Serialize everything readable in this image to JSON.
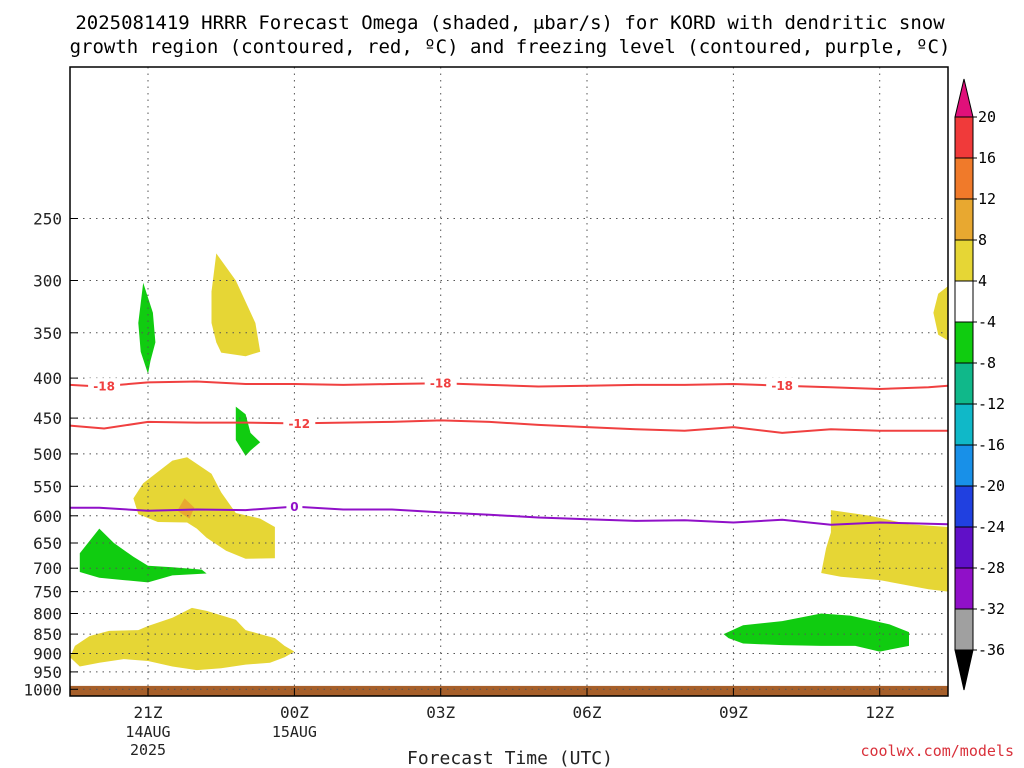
{
  "chart_data": {
    "type": "heatmap",
    "title_lines": [
      "2025081419 HRRR Forecast Omega (shaded, μbar/s) for KORD with dendritic snow",
      "growth region (contoured, red, ºC) and freezing level (contoured, purple, ºC)"
    ],
    "xlabel": "Forecast Time (UTC)",
    "credit": "coolwx.com/models",
    "x_range_hours": [
      -1.6,
      16.4
    ],
    "y_range_hpa": [
      1020,
      160
    ],
    "y_ticks": [
      250,
      300,
      350,
      400,
      450,
      500,
      550,
      600,
      650,
      700,
      750,
      800,
      850,
      900,
      950,
      1000
    ],
    "x_ticks": [
      {
        "hour": 0,
        "label": "21Z",
        "date": "14AUG",
        "year": "2025"
      },
      {
        "hour": 3,
        "label": "00Z",
        "date": "15AUG",
        "year": ""
      },
      {
        "hour": 6,
        "label": "03Z",
        "date": "",
        "year": ""
      },
      {
        "hour": 9,
        "label": "06Z",
        "date": "",
        "year": ""
      },
      {
        "hour": 12,
        "label": "09Z",
        "date": "",
        "year": ""
      },
      {
        "hour": 15,
        "label": "12Z",
        "date": "",
        "year": ""
      }
    ],
    "grid": true,
    "colorbar": {
      "levels": [
        {
          "label": "20",
          "color": "#e8106f"
        },
        {
          "label": "16",
          "color": "#f03a3a"
        },
        {
          "label": "12",
          "color": "#f07a2a"
        },
        {
          "label": "8",
          "color": "#e8a830"
        },
        {
          "label": "4",
          "color": "#e6d635"
        },
        {
          "label": "-4",
          "color": "#ffffff"
        },
        {
          "label": "-8",
          "color": "#10cc10"
        },
        {
          "label": "-12",
          "color": "#10b88a"
        },
        {
          "label": "-16",
          "color": "#10b8c8"
        },
        {
          "label": "-20",
          "color": "#1890e8"
        },
        {
          "label": "-24",
          "color": "#2040e0"
        },
        {
          "label": "-28",
          "color": "#6010c8"
        },
        {
          "label": "-32",
          "color": "#9010c8"
        },
        {
          "label": "-36",
          "color": "#a0a0a0"
        }
      ],
      "top_arrow_color": "#e0107a",
      "bottom_arrow_color": "#000000"
    },
    "contours": [
      {
        "label": "-18",
        "color": "#f04040",
        "points": [
          [
            -1.6,
            408
          ],
          [
            -1.0,
            410
          ],
          [
            0,
            405
          ],
          [
            1,
            404
          ],
          [
            2,
            407
          ],
          [
            3,
            407
          ],
          [
            4,
            408
          ],
          [
            5,
            407
          ],
          [
            6,
            406
          ],
          [
            7,
            408
          ],
          [
            8,
            410
          ],
          [
            9,
            409
          ],
          [
            10,
            408
          ],
          [
            11,
            408
          ],
          [
            12,
            407
          ],
          [
            13,
            409
          ],
          [
            14,
            411
          ],
          [
            15,
            413
          ],
          [
            16,
            411
          ],
          [
            16.4,
            409
          ]
        ],
        "label_hours": [
          -0.9,
          6.0,
          13.0
        ]
      },
      {
        "label": "-12",
        "color": "#f04040",
        "points": [
          [
            -1.6,
            460
          ],
          [
            -0.9,
            464
          ],
          [
            0,
            455
          ],
          [
            1,
            456
          ],
          [
            2,
            456
          ],
          [
            3,
            457
          ],
          [
            4,
            456
          ],
          [
            5,
            455
          ],
          [
            6,
            453
          ],
          [
            7,
            455
          ],
          [
            8,
            459
          ],
          [
            9,
            462
          ],
          [
            10,
            465
          ],
          [
            11,
            467
          ],
          [
            12,
            462
          ],
          [
            13,
            470
          ],
          [
            14,
            465
          ],
          [
            15,
            467
          ],
          [
            16,
            467
          ],
          [
            16.4,
            467
          ]
        ],
        "label_hours": [
          3.1
        ]
      },
      {
        "label": "0",
        "color": "#9010c8",
        "points": [
          [
            -1.6,
            586
          ],
          [
            -1,
            586
          ],
          [
            0,
            591
          ],
          [
            1,
            589
          ],
          [
            2,
            590
          ],
          [
            3,
            584
          ],
          [
            4,
            589
          ],
          [
            5,
            589
          ],
          [
            6,
            594
          ],
          [
            7,
            598
          ],
          [
            8,
            603
          ],
          [
            9,
            606
          ],
          [
            10,
            609
          ],
          [
            11,
            608
          ],
          [
            12,
            612
          ],
          [
            13,
            607
          ],
          [
            14,
            616
          ],
          [
            15,
            612
          ],
          [
            16,
            614
          ],
          [
            16.4,
            615
          ]
        ],
        "label_hours": [
          3.0
        ]
      }
    ],
    "shaded_regions": [
      {
        "value_range": "4 to 8",
        "color": "#e6d635",
        "points": [
          [
            1.4,
            277
          ],
          [
            1.8,
            300
          ],
          [
            2.2,
            340
          ],
          [
            2.3,
            370
          ],
          [
            2.0,
            375
          ],
          [
            1.5,
            371
          ],
          [
            1.4,
            360
          ],
          [
            1.3,
            340
          ],
          [
            1.3,
            310
          ]
        ]
      },
      {
        "value_range": "4 to 8",
        "color": "#e6d635",
        "points": [
          [
            16.4,
            305
          ],
          [
            16.2,
            312
          ],
          [
            16.1,
            330
          ],
          [
            16.2,
            352
          ],
          [
            16.4,
            358
          ]
        ]
      },
      {
        "value_range": "4 to 8",
        "color": "#e6d635",
        "points": [
          [
            0.8,
            505
          ],
          [
            1.3,
            530
          ],
          [
            1.5,
            560
          ],
          [
            1.8,
            595
          ],
          [
            2.3,
            605
          ],
          [
            2.6,
            620
          ],
          [
            2.6,
            680
          ],
          [
            2.0,
            681
          ],
          [
            1.6,
            665
          ],
          [
            1.2,
            640
          ],
          [
            1.0,
            623
          ],
          [
            0.8,
            612
          ],
          [
            0.2,
            611
          ],
          [
            -0.2,
            597
          ],
          [
            -0.3,
            570
          ],
          [
            -0.1,
            545
          ],
          [
            0.5,
            510
          ]
        ]
      },
      {
        "value_range": "8 to 12",
        "color": "#e8a830",
        "points": [
          [
            0.75,
            570
          ],
          [
            0.95,
            586
          ],
          [
            0.85,
            605
          ],
          [
            0.6,
            591
          ]
        ]
      },
      {
        "value_range": "4 to 8",
        "color": "#e6d635",
        "points": [
          [
            14.0,
            590
          ],
          [
            14.8,
            600
          ],
          [
            15.6,
            615
          ],
          [
            16.4,
            620
          ],
          [
            16.4,
            750
          ],
          [
            16.0,
            745
          ],
          [
            15.0,
            725
          ],
          [
            14.2,
            718
          ],
          [
            13.8,
            710
          ],
          [
            13.9,
            660
          ],
          [
            14.0,
            630
          ]
        ]
      },
      {
        "value_range": "4 to 8",
        "color": "#e6d635",
        "points": [
          [
            0,
            830
          ],
          [
            0.5,
            810
          ],
          [
            0.9,
            787
          ],
          [
            1.2,
            794
          ],
          [
            1.8,
            815
          ],
          [
            2.0,
            840
          ],
          [
            2.3,
            850
          ],
          [
            2.6,
            860
          ],
          [
            2.8,
            880
          ],
          [
            3.0,
            895
          ],
          [
            2.8,
            910
          ],
          [
            2.5,
            925
          ],
          [
            2.0,
            930
          ],
          [
            1.5,
            940
          ],
          [
            1.0,
            945
          ],
          [
            0.5,
            935
          ],
          [
            0,
            920
          ],
          [
            -0.5,
            915
          ],
          [
            -1.0,
            925
          ],
          [
            -1.4,
            935
          ],
          [
            -1.6,
            910
          ],
          [
            -1.5,
            880
          ],
          [
            -1.2,
            855
          ],
          [
            -0.8,
            842
          ],
          [
            -0.2,
            840
          ]
        ]
      },
      {
        "value_range": "-8 to -4",
        "color": "#10cc10",
        "points": [
          [
            -0.1,
            302
          ],
          [
            0.1,
            330
          ],
          [
            0.15,
            360
          ],
          [
            0.05,
            380
          ],
          [
            0,
            395
          ],
          [
            -0.15,
            370
          ],
          [
            -0.2,
            340
          ]
        ]
      },
      {
        "value_range": "-8 to -4",
        "color": "#10cc10",
        "points": [
          [
            1.8,
            435
          ],
          [
            2.0,
            445
          ],
          [
            2.1,
            470
          ],
          [
            2.3,
            483
          ],
          [
            2.1,
            495
          ],
          [
            2.0,
            503
          ],
          [
            1.8,
            480
          ],
          [
            1.8,
            460
          ]
        ]
      },
      {
        "value_range": "-8 to -4",
        "color": "#10cc10",
        "points": [
          [
            -1.0,
            623
          ],
          [
            -0.7,
            650
          ],
          [
            -0.3,
            677
          ],
          [
            0,
            695
          ],
          [
            0.5,
            698
          ],
          [
            1.1,
            703
          ],
          [
            1.2,
            711
          ],
          [
            0.5,
            715
          ],
          [
            0,
            730
          ],
          [
            -0.5,
            725
          ],
          [
            -1.0,
            720
          ],
          [
            -1.4,
            708
          ],
          [
            -1.4,
            670
          ]
        ]
      },
      {
        "value_range": "-8 to -4",
        "color": "#10cc10",
        "points": [
          [
            11.8,
            850
          ],
          [
            12.2,
            828
          ],
          [
            13.0,
            818
          ],
          [
            13.8,
            800
          ],
          [
            14.4,
            805
          ],
          [
            15.2,
            826
          ],
          [
            15.6,
            845
          ],
          [
            15.6,
            880
          ],
          [
            15.0,
            895
          ],
          [
            14.5,
            880
          ],
          [
            13.8,
            880
          ],
          [
            13.0,
            878
          ],
          [
            12.2,
            874
          ],
          [
            11.9,
            860
          ]
        ]
      }
    ],
    "ground": {
      "color": "#a65f2a",
      "from_hpa": 990
    }
  }
}
